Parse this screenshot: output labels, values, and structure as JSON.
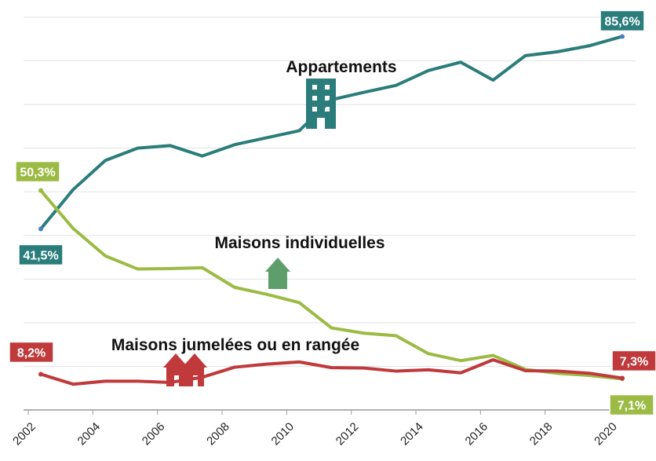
{
  "chart_data": {
    "type": "line",
    "x": [
      2002,
      2003,
      2004,
      2005,
      2006,
      2007,
      2008,
      2009,
      2010,
      2011,
      2012,
      2013,
      2014,
      2015,
      2016,
      2017,
      2018,
      2019,
      2020
    ],
    "xlim": [
      2002,
      2020
    ],
    "xticks": [
      2002,
      2004,
      2006,
      2008,
      2010,
      2012,
      2014,
      2016,
      2018,
      2020
    ],
    "ylim": [
      0,
      90
    ],
    "yticks": [
      0,
      10,
      20,
      30,
      40,
      50,
      60,
      70,
      80,
      90
    ],
    "grid": true,
    "series": [
      {
        "name": "Appartements",
        "color": "#2a7d7b",
        "values": [
          41.5,
          50.5,
          57.2,
          60,
          60.6,
          58.2,
          60.8,
          62.4,
          64,
          71.1,
          72.8,
          74.4,
          77.8,
          79.7,
          75.6,
          81.2,
          82.1,
          83.5,
          85.6
        ],
        "value_labels": [
          "41,5%",
          null,
          null,
          null,
          null,
          null,
          null,
          null,
          null,
          null,
          null,
          null,
          null,
          null,
          null,
          null,
          null,
          null,
          "85,6%"
        ]
      },
      {
        "name": "Maisons individuelles",
        "color": "#9bbb45",
        "values": [
          50.3,
          41.6,
          35.3,
          32.3,
          32.4,
          32.6,
          28.1,
          26.5,
          24.6,
          18.8,
          17.6,
          17,
          12.9,
          11.3,
          12.5,
          9.3,
          8.4,
          7.9,
          7.1
        ],
        "value_labels": [
          "50,3%",
          null,
          null,
          null,
          null,
          null,
          null,
          null,
          null,
          null,
          null,
          null,
          null,
          null,
          null,
          null,
          null,
          null,
          "7,1%"
        ]
      },
      {
        "name": "Maisons jumelées ou en rangée",
        "color": "#c0393b",
        "values": [
          8.2,
          5.9,
          6.6,
          6.6,
          6.3,
          7.5,
          9.8,
          10.5,
          11,
          9.7,
          9.6,
          8.9,
          9.2,
          8.5,
          11.5,
          9,
          8.9,
          8.4,
          7.3
        ],
        "value_labels": [
          "8,2%",
          null,
          null,
          null,
          null,
          null,
          null,
          null,
          null,
          null,
          null,
          null,
          null,
          null,
          null,
          null,
          null,
          null,
          "7,3%"
        ]
      }
    ]
  }
}
